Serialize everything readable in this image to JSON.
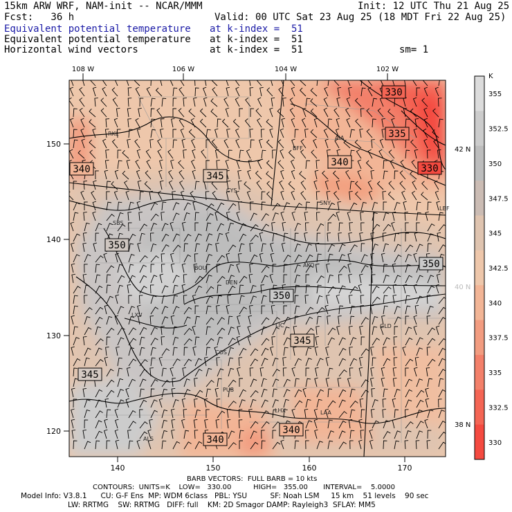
{
  "header": {
    "model": "15km ARW WRF, NAM-init -- NCAR/MMM",
    "init": "Init: 12 UTC Thu 21 Aug 25",
    "fcst": "Fcst:   36 h",
    "valid": "Valid: 00 UTC Sat 23 Aug 25 (18 MDT Fri 22 Aug 25)",
    "fields": [
      {
        "name": "Equivalent potential temperature",
        "level": "at k-index =  51",
        "color": "#1a1aa6"
      },
      {
        "name": "Equivalent potential temperature",
        "level": "at k-index =  51",
        "color": "#000000"
      },
      {
        "name": "Horizontal wind vectors",
        "level": "at k-index =  51",
        "color": "#000000"
      }
    ],
    "smoothing": "sm= 1"
  },
  "axes": {
    "top_lon": [
      "108 W",
      "106 W",
      "104 W",
      "102 W"
    ],
    "left_y": [
      "150",
      "140",
      "130",
      "120"
    ],
    "bottom_x": [
      "140",
      "150",
      "160",
      "170"
    ],
    "right_lat": [
      {
        "label": "42 N",
        "color": "#000000"
      },
      {
        "label": "40 N",
        "color": "#bbbbbb"
      },
      {
        "label": "38 N",
        "color": "#000000"
      }
    ]
  },
  "colorbar": {
    "unit": "K",
    "labels": [
      "355",
      "352.5",
      "350",
      "347.5",
      "345",
      "342.5",
      "340",
      "337.5",
      "335",
      "332.5",
      "330"
    ],
    "colors": [
      "#dcdcdc",
      "#cccccc",
      "#bdbdbd",
      "#cbbcb4",
      "#dfc4b0",
      "#eec7ab",
      "#f2b596",
      "#f29c80",
      "#f3806a",
      "#f46554",
      "#f44a40"
    ]
  },
  "contour_labels": [
    "330",
    "335",
    "330",
    "340",
    "345",
    "340",
    "350",
    "350",
    "350",
    "345",
    "345",
    "340",
    "340"
  ],
  "stations": [
    "RKL",
    "BFF",
    "AIA",
    "CYS",
    "SNY",
    "LBF",
    "SBS",
    "BOU",
    "AKO",
    "DEN",
    "LXV",
    "LIC",
    "GLD",
    "COS",
    "PUB",
    "LHX",
    "LAA",
    "ALS"
  ],
  "footer": {
    "barb": "BARB VECTORS:  FULL BARB = 10 kts",
    "contours": "CONTOURS:  UNITS=K    LOW=   330.00          HIGH=   355.00       INTERVAL=    5.0000",
    "model_info": "Model Info: V3.8.1      CU: G-F Ens  MP: WDM 6class   PBL: YSU          SF: Noah LSM     15 km    51 levels    90 sec",
    "model_info2": "LW: RRTMG    SW: RRTMG   DIFF: full    KM: 2D Smagor DAMP: Rayleigh3  SFLAY: MM5"
  }
}
